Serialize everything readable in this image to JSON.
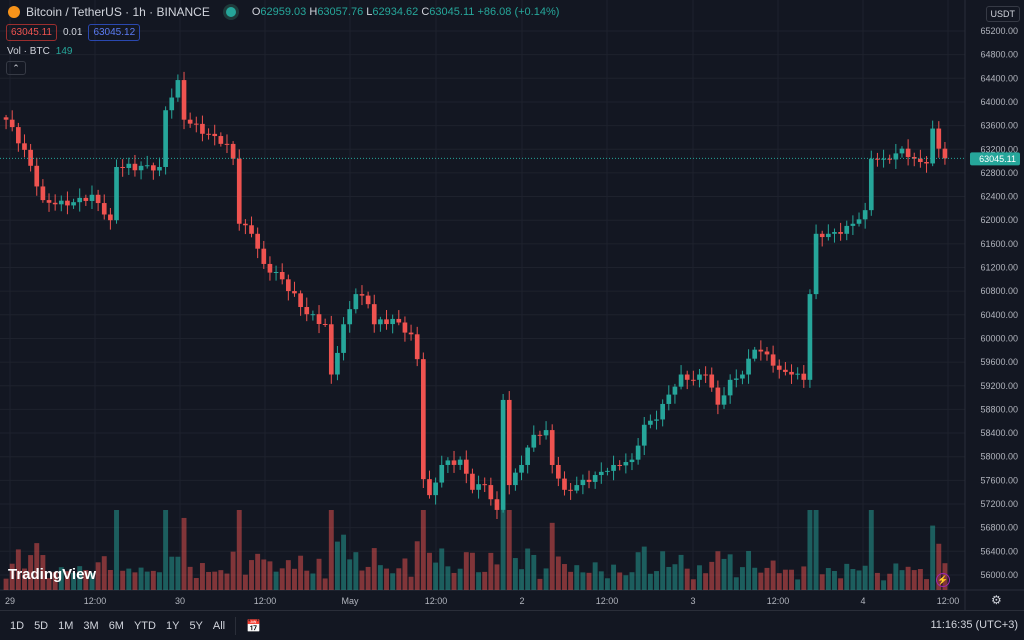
{
  "header": {
    "symbol": "Bitcoin / TetherUS · 1h · BINANCE",
    "o_label": "O",
    "o": "62959.03",
    "h_label": "H",
    "h": "63057.76",
    "l_label": "L",
    "l": "62934.62",
    "c_label": "C",
    "c": "63045.11",
    "change": "+86.08 (+0.14%)"
  },
  "quote": {
    "bid": "63045.11",
    "spread": "0.01",
    "ask": "63045.12"
  },
  "volume": {
    "label": "Vol · BTC",
    "value": "149"
  },
  "currency": "USDT",
  "price_axis": [
    "65200.00",
    "64800.00",
    "64400.00",
    "64000.00",
    "63600.00",
    "63200.00",
    "62800.00",
    "62400.00",
    "62000.00",
    "61600.00",
    "61200.00",
    "60800.00",
    "60400.00",
    "60000.00",
    "59600.00",
    "59200.00",
    "58800.00",
    "58400.00",
    "58000.00",
    "57600.00",
    "57200.00",
    "56800.00",
    "56400.00",
    "56000.00"
  ],
  "current_price": "63045.11",
  "time_axis": [
    "29",
    "12:00",
    "30",
    "12:00",
    "May",
    "12:00",
    "2",
    "12:00",
    "3",
    "12:00",
    "4",
    "12:00"
  ],
  "ranges": [
    "1D",
    "5D",
    "1M",
    "3M",
    "6M",
    "YTD",
    "1Y",
    "5Y",
    "All"
  ],
  "clock": "11:16:35 (UTC+3)",
  "brand": "TradingView",
  "colors": {
    "up": "#26a69a",
    "down": "#ef5350"
  },
  "series_keyframes": [
    [
      0,
      63700
    ],
    [
      3,
      63190
    ],
    [
      6,
      62340
    ],
    [
      10,
      62250
    ],
    [
      14,
      62430
    ],
    [
      17,
      62000
    ],
    [
      18,
      62900
    ],
    [
      25,
      62900
    ],
    [
      26,
      63860
    ],
    [
      28,
      64370
    ],
    [
      29,
      63700
    ],
    [
      33,
      63460
    ],
    [
      36,
      63290
    ],
    [
      37,
      63040
    ],
    [
      38,
      61940
    ],
    [
      40,
      61770
    ],
    [
      42,
      61260
    ],
    [
      45,
      61000
    ],
    [
      49,
      60410
    ],
    [
      52,
      60240
    ],
    [
      53,
      59390
    ],
    [
      55,
      60240
    ],
    [
      57,
      60750
    ],
    [
      59,
      60580
    ],
    [
      60,
      60240
    ],
    [
      63,
      60330
    ],
    [
      66,
      60070
    ],
    [
      67,
      59650
    ],
    [
      68,
      57620
    ],
    [
      69,
      57350
    ],
    [
      71,
      57860
    ],
    [
      74,
      57950
    ],
    [
      76,
      57440
    ],
    [
      78,
      57520
    ],
    [
      80,
      57100
    ],
    [
      81,
      58960
    ],
    [
      82,
      57520
    ],
    [
      84,
      57860
    ],
    [
      86,
      58370
    ],
    [
      88,
      58450
    ],
    [
      89,
      57860
    ],
    [
      91,
      57440
    ],
    [
      93,
      57520
    ],
    [
      96,
      57690
    ],
    [
      99,
      57860
    ],
    [
      102,
      57950
    ],
    [
      104,
      58540
    ],
    [
      106,
      58630
    ],
    [
      108,
      59050
    ],
    [
      110,
      59390
    ],
    [
      112,
      59300
    ],
    [
      114,
      59390
    ],
    [
      116,
      58880
    ],
    [
      118,
      59300
    ],
    [
      120,
      59390
    ],
    [
      122,
      59810
    ],
    [
      124,
      59730
    ],
    [
      126,
      59470
    ],
    [
      128,
      59390
    ],
    [
      130,
      59300
    ],
    [
      131,
      60750
    ],
    [
      132,
      61770
    ],
    [
      134,
      61770
    ],
    [
      136,
      61770
    ],
    [
      138,
      61940
    ],
    [
      140,
      62170
    ],
    [
      141,
      63040
    ],
    [
      143,
      63040
    ],
    [
      145,
      63130
    ],
    [
      146,
      63210
    ],
    [
      148,
      63040
    ],
    [
      150,
      62960
    ],
    [
      151,
      63550
    ],
    [
      152,
      63210
    ],
    [
      153,
      63045
    ]
  ]
}
